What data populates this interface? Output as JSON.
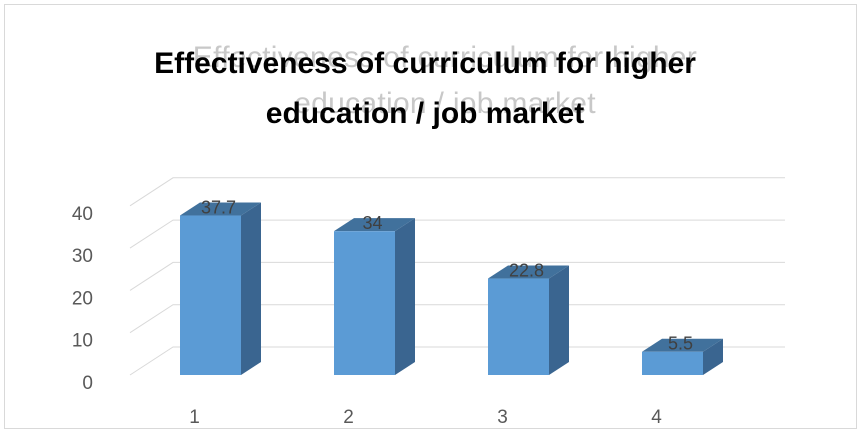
{
  "chart_data": {
    "type": "bar",
    "title_lines": [
      "Effectiveness of curriculum for higher",
      "education / job market"
    ],
    "categories": [
      "1",
      "2",
      "3",
      "4"
    ],
    "values": [
      37.7,
      34,
      22.8,
      5.5
    ],
    "data_labels": [
      "37.7",
      "34",
      "22.8",
      "5.5"
    ],
    "y_ticks": [
      "0",
      "10",
      "20",
      "30",
      "40"
    ],
    "ylim": [
      0,
      40
    ],
    "xlabel": "",
    "ylabel": "",
    "grid": true,
    "style": "3d-column",
    "colors": {
      "bar_front": "#5b9bd5",
      "bar_side": "#3a6590",
      "bar_top": "#41719c",
      "grid": "#d9d9d9"
    }
  }
}
